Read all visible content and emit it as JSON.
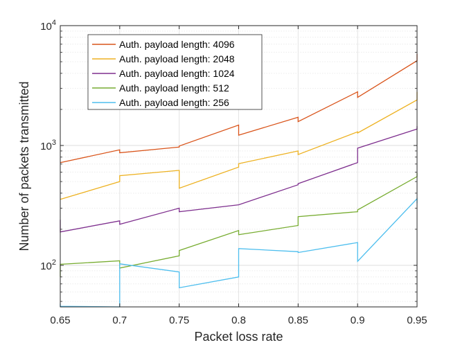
{
  "chart_data": {
    "type": "line",
    "xlabel": "Packet loss rate",
    "ylabel": "Number of packets transmitted",
    "xlim": [
      0.65,
      0.95
    ],
    "ylim": [
      45,
      10000
    ],
    "yscale": "log",
    "grid": true,
    "legend_position": "top-left",
    "x_ticks": [
      0.65,
      0.7,
      0.75,
      0.8,
      0.85,
      0.9,
      0.95
    ],
    "x_tick_labels": [
      "0.65",
      "0.7",
      "0.75",
      "0.8",
      "0.85",
      "0.9",
      "0.95"
    ],
    "y_ticks": [
      {
        "value": 100,
        "base": "10",
        "exp": "2"
      },
      {
        "value": 1000,
        "base": "10",
        "exp": "3"
      },
      {
        "value": 10000,
        "base": "10",
        "exp": "4"
      }
    ],
    "series": [
      {
        "name": "Auth. payload length: 4096",
        "color": "#D95319",
        "points": [
          [
            0.65,
            720
          ],
          [
            0.7,
            920
          ],
          [
            0.7,
            870
          ],
          [
            0.75,
            970
          ],
          [
            0.75,
            990
          ],
          [
            0.8,
            1480
          ],
          [
            0.8,
            1220
          ],
          [
            0.85,
            1720
          ],
          [
            0.85,
            1580
          ],
          [
            0.9,
            2800
          ],
          [
            0.9,
            2520
          ],
          [
            0.95,
            5100
          ],
          [
            0.95,
            5800
          ]
        ]
      },
      {
        "name": "Auth. payload length: 2048",
        "color": "#EDB120",
        "points": [
          [
            0.65,
            355
          ],
          [
            0.7,
            500
          ],
          [
            0.7,
            560
          ],
          [
            0.75,
            620
          ],
          [
            0.75,
            440
          ],
          [
            0.8,
            660
          ],
          [
            0.8,
            705
          ],
          [
            0.85,
            900
          ],
          [
            0.85,
            840
          ],
          [
            0.9,
            1300
          ],
          [
            0.9,
            1270
          ],
          [
            0.95,
            2400
          ],
          [
            0.95,
            2800
          ]
        ]
      },
      {
        "name": "Auth. payload length: 1024",
        "color": "#7E2F8E",
        "points": [
          [
            0.65,
            240
          ],
          [
            0.65,
            190
          ],
          [
            0.7,
            235
          ],
          [
            0.7,
            220
          ],
          [
            0.75,
            300
          ],
          [
            0.75,
            280
          ],
          [
            0.8,
            320
          ],
          [
            0.8,
            320
          ],
          [
            0.85,
            470
          ],
          [
            0.85,
            480
          ],
          [
            0.9,
            720
          ],
          [
            0.9,
            950
          ],
          [
            0.95,
            1370
          ],
          [
            0.95,
            1450
          ]
        ]
      },
      {
        "name": "Auth. payload length: 512",
        "color": "#77AC30",
        "points": [
          [
            0.65,
            80
          ],
          [
            0.65,
            102
          ],
          [
            0.7,
            109
          ],
          [
            0.7,
            95
          ],
          [
            0.75,
            120
          ],
          [
            0.75,
            133
          ],
          [
            0.8,
            195
          ],
          [
            0.8,
            180
          ],
          [
            0.85,
            215
          ],
          [
            0.85,
            255
          ],
          [
            0.9,
            280
          ],
          [
            0.9,
            290
          ],
          [
            0.95,
            550
          ],
          [
            0.95,
            590
          ]
        ]
      },
      {
        "name": "Auth. payload length: 256",
        "color": "#4DBEEE",
        "points": [
          [
            0.65,
            48
          ],
          [
            0.65,
            45.5
          ],
          [
            0.7,
            45
          ],
          [
            0.7,
            103
          ],
          [
            0.75,
            88
          ],
          [
            0.75,
            65
          ],
          [
            0.8,
            80
          ],
          [
            0.8,
            138
          ],
          [
            0.85,
            130
          ],
          [
            0.85,
            128
          ],
          [
            0.9,
            155
          ],
          [
            0.9,
            108
          ],
          [
            0.95,
            360
          ],
          [
            0.95,
            330
          ]
        ]
      }
    ]
  }
}
